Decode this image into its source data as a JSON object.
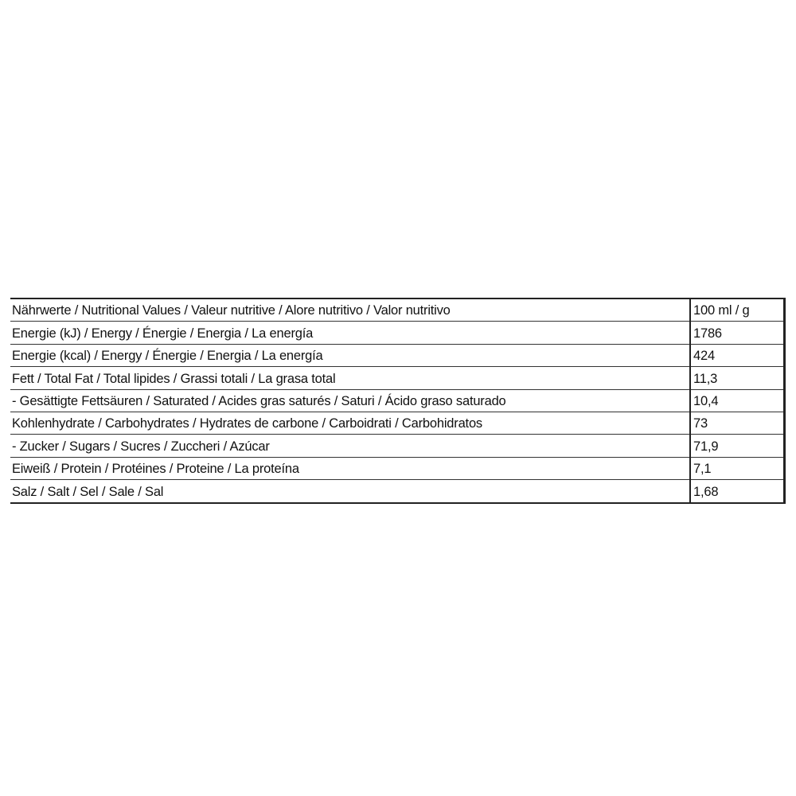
{
  "table": {
    "rows": [
      {
        "label": "Nährwerte / Nutritional Values / Valeur nutritive / Alore nutritivo / Valor nutritivo",
        "value": "100 ml / g"
      },
      {
        "label": "Energie (kJ) / Energy / Énergie / Energia / La energía",
        "value": "1786"
      },
      {
        "label": "Energie (kcal) / Energy / Énergie / Energia / La energía",
        "value": "424"
      },
      {
        "label": "Fett / Total Fat / Total lipides / Grassi totali / La grasa total",
        "value": "11,3"
      },
      {
        "label": "- Gesättigte Fettsäuren / Saturated / Acides gras saturés / Saturi / Ácido graso saturado",
        "value": "10,4"
      },
      {
        "label": "Kohlenhydrate / Carbohydrates / Hydrates de carbone / Carboidrati / Carbohidratos",
        "value": "73"
      },
      {
        "label": "- Zucker / Sugars / Sucres / Zuccheri / Azúcar",
        "value": "71,9"
      },
      {
        "label": "Eiweiß / Protein / Protéines / Proteine / La proteína",
        "value": "7,1"
      },
      {
        "label": "Salz / Salt / Sel / Sale / Sal",
        "value": "1,68"
      }
    ]
  }
}
